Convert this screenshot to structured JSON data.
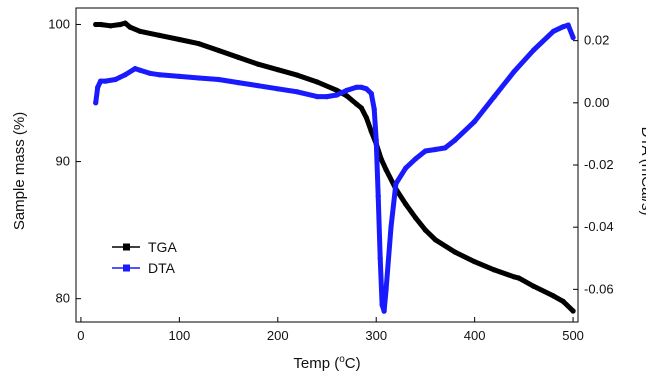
{
  "chart_data": {
    "type": "line",
    "title": "",
    "xlabel": {
      "pre": "Temp (",
      "sup": "o",
      "post": "C)"
    },
    "ylabel_left": "Sample mass (%)",
    "ylabel_right": "DTA (mCal/s)",
    "x_range": [
      -5,
      505
    ],
    "y_left_range": [
      78.3,
      101.2
    ],
    "y_right_range": [
      -0.0705,
      0.0305
    ],
    "x_ticks": [
      0,
      100,
      200,
      300,
      400,
      500
    ],
    "y_left_ticks": [
      80,
      90,
      100
    ],
    "y_right_ticks": [
      -0.06,
      -0.04,
      -0.02,
      0.0,
      0.02
    ],
    "y_right_tick_labels": [
      "-0.06",
      "-0.04",
      "-0.02",
      "0.00",
      "0.02"
    ],
    "legend": {
      "placement": "center-left"
    },
    "series": [
      {
        "name": "TGA",
        "axis": "left",
        "color": "#000000",
        "x": [
          15,
          20,
          30,
          40,
          45,
          50,
          60,
          80,
          100,
          120,
          140,
          160,
          180,
          200,
          220,
          240,
          260,
          270,
          280,
          285,
          290,
          295,
          300,
          305,
          310,
          320,
          330,
          340,
          350,
          360,
          380,
          400,
          420,
          440,
          445,
          460,
          480,
          490,
          500
        ],
        "y": [
          100.0,
          100.0,
          99.9,
          100.0,
          100.1,
          99.8,
          99.5,
          99.2,
          98.9,
          98.6,
          98.1,
          97.6,
          97.1,
          96.7,
          96.3,
          95.8,
          95.2,
          94.8,
          94.2,
          93.9,
          93.2,
          92.2,
          91.3,
          90.2,
          89.4,
          88.0,
          86.9,
          85.9,
          85.0,
          84.3,
          83.4,
          82.7,
          82.1,
          81.6,
          81.5,
          80.9,
          80.2,
          79.8,
          79.1
        ]
      },
      {
        "name": "DTA",
        "axis": "right",
        "color": "#1a1aff",
        "x": [
          15,
          17,
          20,
          25,
          35,
          45,
          55,
          60,
          70,
          80,
          100,
          120,
          140,
          160,
          180,
          200,
          220,
          240,
          250,
          260,
          270,
          280,
          285,
          290,
          295,
          298,
          300,
          302,
          304,
          306,
          308,
          310,
          315,
          320,
          330,
          340,
          350,
          360,
          370,
          380,
          400,
          420,
          440,
          460,
          480,
          490,
          495,
          500
        ],
        "y": [
          0.0,
          0.005,
          0.007,
          0.007,
          0.0075,
          0.009,
          0.011,
          0.0105,
          0.0095,
          0.009,
          0.0085,
          0.008,
          0.0075,
          0.0065,
          0.0055,
          0.0045,
          0.0035,
          0.002,
          0.002,
          0.0025,
          0.004,
          0.005,
          0.005,
          0.0045,
          0.003,
          -0.002,
          -0.012,
          -0.03,
          -0.05,
          -0.065,
          -0.067,
          -0.06,
          -0.04,
          -0.026,
          -0.021,
          -0.018,
          -0.0155,
          -0.015,
          -0.0145,
          -0.012,
          -0.006,
          0.002,
          0.01,
          0.017,
          0.023,
          0.0245,
          0.025,
          0.021
        ]
      }
    ]
  }
}
